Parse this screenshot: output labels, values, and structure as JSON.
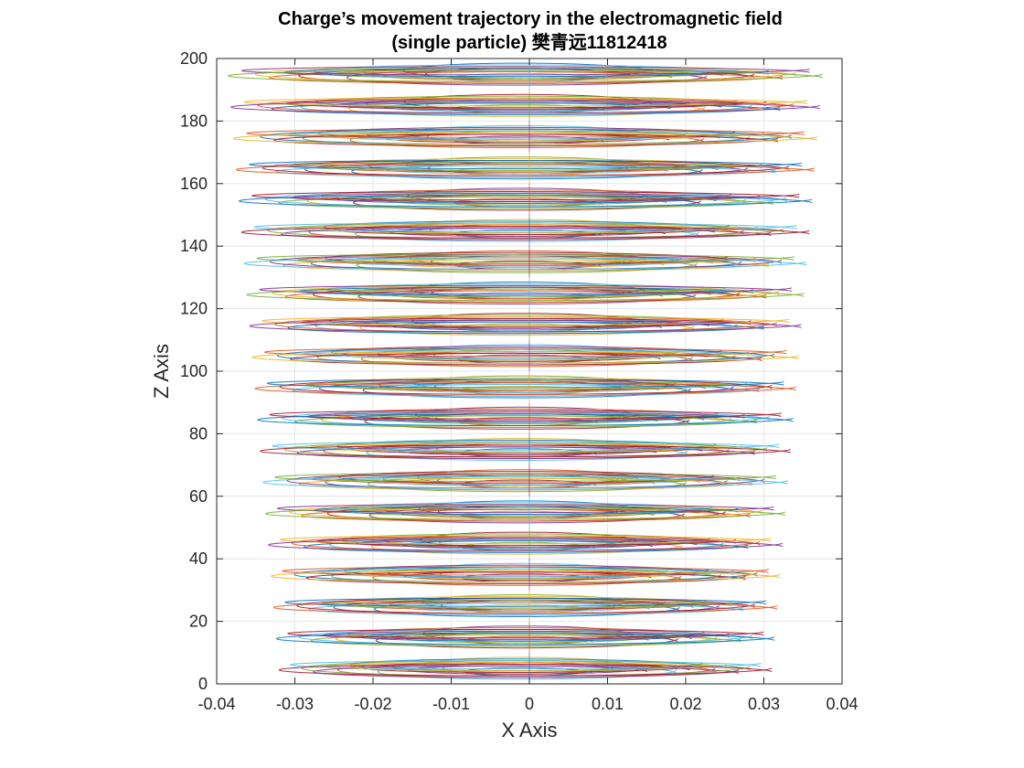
{
  "chart_data": {
    "type": "line",
    "title": "Charge’s movement trajectory in the electromagnetic field",
    "subtitle": "(single particle) 樊青远11812418",
    "xlabel": "X Axis",
    "ylabel": "Z Axis",
    "xlim": [
      -0.04,
      0.04
    ],
    "ylim": [
      0,
      200
    ],
    "xticks": [
      -0.04,
      -0.03,
      -0.02,
      -0.01,
      0,
      0.01,
      0.02,
      0.03,
      0.04
    ],
    "xtick_labels": [
      "-0.04",
      "-0.03",
      "-0.02",
      "-0.01",
      "0",
      "0.01",
      "0.02",
      "0.03",
      "0.04"
    ],
    "yticks": [
      0,
      20,
      40,
      60,
      80,
      100,
      120,
      140,
      160,
      180,
      200
    ],
    "ytick_labels": [
      "0",
      "20",
      "40",
      "60",
      "80",
      "100",
      "120",
      "140",
      "160",
      "180",
      "200"
    ],
    "grid": true,
    "legend": "none",
    "trajectory": {
      "z_start": 0,
      "z_end": 200,
      "turns": 20,
      "pitch": 10,
      "x_amplitude_left": [
        0.032,
        0.0385
      ],
      "x_amplitude_right": [
        0.031,
        0.0375
      ],
      "description_values": "bands centered near z = 5, 15, 25, ..., 195"
    },
    "series_colors": [
      "#0072bd",
      "#d95319",
      "#edb120",
      "#7e2f8e",
      "#77ac30",
      "#4dbeee",
      "#a2142f"
    ]
  }
}
